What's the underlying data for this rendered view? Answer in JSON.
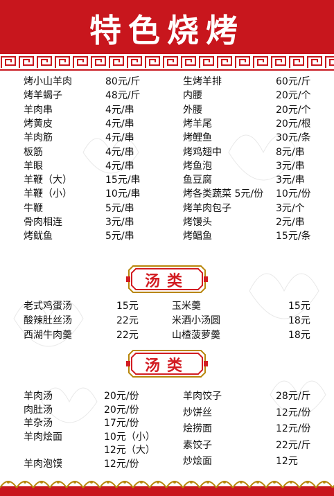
{
  "title": "特色烧烤",
  "bbq": {
    "left": [
      {
        "name": "烤小山羊肉",
        "price": "80元/斤"
      },
      {
        "name": "烤羊蝎子",
        "price": "48元/斤"
      },
      {
        "name": "羊肉串",
        "price": "4元/串"
      },
      {
        "name": "烤黄皮",
        "price": "4元/串"
      },
      {
        "name": "羊肉筋",
        "price": "4元/串"
      },
      {
        "name": "板筋",
        "price": "4元/串"
      },
      {
        "name": "羊眼",
        "price": "4元/串"
      },
      {
        "name": "羊鞭（大）",
        "price": "15元/串"
      },
      {
        "name": "羊鞭（小）",
        "price": "10元/串"
      },
      {
        "name": "牛鞭",
        "price": "5元/串"
      },
      {
        "name": "骨肉相连",
        "price": "3元/串"
      },
      {
        "name": "烤鱿鱼",
        "price": "5元/串"
      }
    ],
    "right": [
      {
        "name": "生烤羊排",
        "price": "60元/斤"
      },
      {
        "name": "内腰",
        "price": "20元/个"
      },
      {
        "name": "外腰",
        "price": "20元/个"
      },
      {
        "name": "烤羊尾",
        "price": "20元/根"
      },
      {
        "name": "烤鲤鱼",
        "price": "30元/条"
      },
      {
        "name": "烤鸡翅中",
        "price": "8元/串"
      },
      {
        "name": "烤鱼泡",
        "price": "3元/串"
      },
      {
        "name": "鱼豆腐",
        "price": "3元/串"
      },
      {
        "name": "烤各类蔬菜  5元/份",
        "price": "10元/份"
      },
      {
        "name": "烤羊肉包子",
        "price": "3元/个"
      },
      {
        "name": "烤馒头",
        "price": "2元/串"
      },
      {
        "name": "烤鲳鱼",
        "price": "15元/条"
      }
    ]
  },
  "soup": {
    "heading": "汤类",
    "left": [
      {
        "name": "老式鸡蛋汤",
        "price": "15元"
      },
      {
        "name": "酸辣肚丝汤",
        "price": "22元"
      },
      {
        "name": "西湖牛肉羹",
        "price": "22元"
      }
    ],
    "right": [
      {
        "name": "玉米羹",
        "price": "15元"
      },
      {
        "name": "米酒小汤圆",
        "price": "18元"
      },
      {
        "name": "山楂菠萝羹",
        "price": "18元"
      }
    ]
  },
  "staple": {
    "heading": "汤类",
    "left": [
      {
        "name": "羊肉汤",
        "price": "20元/份"
      },
      {
        "name": "肉肚汤",
        "price": "20元/份"
      },
      {
        "name": "羊杂汤",
        "price": "17元/份"
      },
      {
        "name": "羊肉烩面",
        "price": "10元（小）"
      },
      {
        "name": "",
        "price": "12元（大）"
      },
      {
        "name": "羊肉泡馍",
        "price": "12元/份"
      }
    ],
    "right": [
      {
        "name": "羊肉饺子",
        "price": "28元/斤"
      },
      {
        "name": "炒饼丝",
        "price": "12元/份"
      },
      {
        "name": "烩捞面",
        "price": "12元/份"
      },
      {
        "name": "素饺子",
        "price": "22元/斤"
      },
      {
        "name": "炒烩面",
        "price": "12元"
      }
    ]
  },
  "colors": {
    "brand_red": "#c8161d",
    "gold": "#b8860b"
  }
}
